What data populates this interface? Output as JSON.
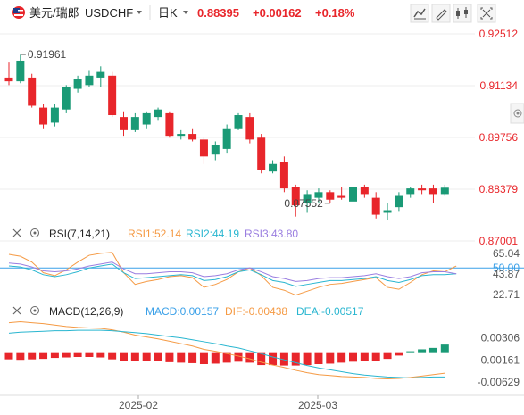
{
  "header": {
    "flag_icon": "us-ch-flag-icon",
    "pair_name": "美元/瑞郎",
    "symbol": "USDCHF",
    "dropdown_icon": "caret-down-icon",
    "period": "日K",
    "period_dropdown_icon": "caret-down-icon",
    "price": "0.88395",
    "change": "+0.00162",
    "change_pct": "+0.18%",
    "tools": [
      {
        "name": "line-chart-icon"
      },
      {
        "name": "draw-tool-icon"
      },
      {
        "name": "candlestick-icon"
      },
      {
        "name": "fullscreen-icon"
      }
    ],
    "right_settings_icon": "settings-icon"
  },
  "colors": {
    "up": "#1a9a76",
    "down": "#e8262b",
    "accent_red": "#e8262b",
    "rsi1": "#f59a44",
    "rsi2": "#29b6d0",
    "rsi3": "#9a7ee0",
    "macd_label": "#3aa0e8",
    "dif": "#f59a44",
    "dea": "#29b6d0",
    "rsi_ref": "#3aa0e8",
    "grid": "#eeeeee",
    "axis_text": "#555555",
    "price_axis_text": "#e8262b"
  },
  "chart_data": [
    {
      "type": "candlestick",
      "title": "",
      "y_ticks": [
        "0.92512",
        "0.91134",
        "0.89756",
        "0.88379",
        "0.87001"
      ],
      "ylim": [
        0.87001,
        0.92512
      ],
      "x_ticks": [
        "2025-02",
        "2025-03"
      ],
      "annotations": [
        {
          "text": "0.91961",
          "kind": "high",
          "index": 1
        },
        {
          "text": "0.87552",
          "kind": "low",
          "index": 28
        }
      ],
      "candles": [
        {
          "o": 0.9135,
          "h": 0.9175,
          "l": 0.9115,
          "c": 0.9125
        },
        {
          "o": 0.9125,
          "h": 0.9196,
          "l": 0.912,
          "c": 0.918
        },
        {
          "o": 0.9135,
          "h": 0.9145,
          "l": 0.9055,
          "c": 0.906
        },
        {
          "o": 0.9055,
          "h": 0.9065,
          "l": 0.9,
          "c": 0.901
        },
        {
          "o": 0.9015,
          "h": 0.9065,
          "l": 0.9005,
          "c": 0.9055
        },
        {
          "o": 0.905,
          "h": 0.9115,
          "l": 0.904,
          "c": 0.911
        },
        {
          "o": 0.9105,
          "h": 0.914,
          "l": 0.9095,
          "c": 0.913
        },
        {
          "o": 0.9115,
          "h": 0.9155,
          "l": 0.911,
          "c": 0.914
        },
        {
          "o": 0.9135,
          "h": 0.9165,
          "l": 0.911,
          "c": 0.915
        },
        {
          "o": 0.914,
          "h": 0.915,
          "l": 0.903,
          "c": 0.9035
        },
        {
          "o": 0.903,
          "h": 0.9045,
          "l": 0.898,
          "c": 0.8995
        },
        {
          "o": 0.8995,
          "h": 0.904,
          "l": 0.899,
          "c": 0.903
        },
        {
          "o": 0.901,
          "h": 0.9045,
          "l": 0.9,
          "c": 0.904
        },
        {
          "o": 0.903,
          "h": 0.9055,
          "l": 0.902,
          "c": 0.905
        },
        {
          "o": 0.904,
          "h": 0.9045,
          "l": 0.8975,
          "c": 0.898
        },
        {
          "o": 0.898,
          "h": 0.8995,
          "l": 0.897,
          "c": 0.8985
        },
        {
          "o": 0.8985,
          "h": 0.9,
          "l": 0.8965,
          "c": 0.897
        },
        {
          "o": 0.897,
          "h": 0.8975,
          "l": 0.8905,
          "c": 0.8925
        },
        {
          "o": 0.893,
          "h": 0.8965,
          "l": 0.8915,
          "c": 0.8955
        },
        {
          "o": 0.8945,
          "h": 0.901,
          "l": 0.8935,
          "c": 0.9
        },
        {
          "o": 0.9,
          "h": 0.904,
          "l": 0.8995,
          "c": 0.9035
        },
        {
          "o": 0.903,
          "h": 0.904,
          "l": 0.896,
          "c": 0.897
        },
        {
          "o": 0.8975,
          "h": 0.8985,
          "l": 0.888,
          "c": 0.889
        },
        {
          "o": 0.8885,
          "h": 0.8915,
          "l": 0.888,
          "c": 0.8905
        },
        {
          "o": 0.891,
          "h": 0.8925,
          "l": 0.883,
          "c": 0.884
        },
        {
          "o": 0.8845,
          "h": 0.885,
          "l": 0.8765,
          "c": 0.8795
        },
        {
          "o": 0.88,
          "h": 0.8835,
          "l": 0.8775,
          "c": 0.8825
        },
        {
          "o": 0.8815,
          "h": 0.884,
          "l": 0.88,
          "c": 0.883
        },
        {
          "o": 0.883,
          "h": 0.8835,
          "l": 0.88,
          "c": 0.881
        },
        {
          "o": 0.882,
          "h": 0.8845,
          "l": 0.881,
          "c": 0.8815
        },
        {
          "o": 0.8805,
          "h": 0.8855,
          "l": 0.88,
          "c": 0.8845
        },
        {
          "o": 0.8845,
          "h": 0.885,
          "l": 0.8815,
          "c": 0.8825
        },
        {
          "o": 0.8815,
          "h": 0.883,
          "l": 0.876,
          "c": 0.877
        },
        {
          "o": 0.8775,
          "h": 0.88,
          "l": 0.8755,
          "c": 0.8782
        },
        {
          "o": 0.879,
          "h": 0.883,
          "l": 0.878,
          "c": 0.882
        },
        {
          "o": 0.8825,
          "h": 0.8845,
          "l": 0.8815,
          "c": 0.884
        },
        {
          "o": 0.884,
          "h": 0.885,
          "l": 0.8825,
          "c": 0.8835
        },
        {
          "o": 0.884,
          "h": 0.885,
          "l": 0.88,
          "c": 0.8825
        },
        {
          "o": 0.8825,
          "h": 0.885,
          "l": 0.882,
          "c": 0.8842
        }
      ]
    },
    {
      "type": "line",
      "title": "RSI(7,14,21)",
      "legend": [
        {
          "label": "RSI1:52.14",
          "color_key": "rsi1"
        },
        {
          "label": "RSI2:44.19",
          "color_key": "rsi2"
        },
        {
          "label": "RSI3:43.80",
          "color_key": "rsi3"
        }
      ],
      "y_ticks": [
        "65.04",
        "50.00",
        "43.87",
        "22.71"
      ],
      "ylim": [
        18,
        75
      ],
      "reference_line": 50,
      "series": [
        {
          "name": "RSI1",
          "color_key": "rsi1",
          "values": [
            64,
            62,
            56,
            45,
            42,
            48,
            56,
            63,
            65,
            66,
            45,
            33,
            36,
            38,
            41,
            42,
            40,
            30,
            33,
            38,
            46,
            50,
            42,
            30,
            27,
            22,
            26,
            30,
            33,
            34,
            36,
            38,
            40,
            30,
            28,
            35,
            43,
            47,
            46,
            52
          ]
        },
        {
          "name": "RSI2",
          "color_key": "rsi2",
          "values": [
            52,
            51,
            48,
            43,
            41,
            43,
            46,
            50,
            52,
            54,
            45,
            39,
            40,
            41,
            42,
            43,
            42,
            37,
            38,
            41,
            46,
            48,
            43,
            37,
            35,
            31,
            33,
            35,
            37,
            37,
            38,
            39,
            41,
            37,
            35,
            38,
            42,
            43,
            43,
            44
          ]
        },
        {
          "name": "RSI3",
          "color_key": "rsi3",
          "values": [
            55,
            54,
            51,
            47,
            46,
            47,
            49,
            52,
            54,
            56,
            49,
            44,
            44,
            45,
            46,
            46,
            45,
            41,
            42,
            44,
            48,
            50,
            46,
            41,
            39,
            36,
            37,
            39,
            40,
            40,
            41,
            42,
            44,
            41,
            39,
            41,
            45,
            46,
            46,
            44
          ]
        }
      ]
    },
    {
      "type": "bar_line",
      "title": "MACD(12,26,9)",
      "legend": [
        {
          "label": "MACD:0.00157",
          "color_key": "macd_label"
        },
        {
          "label": "DIF:-0.00438",
          "color_key": "dif"
        },
        {
          "label": "DEA:-0.00517",
          "color_key": "dea"
        }
      ],
      "y_ticks": [
        "0.00306",
        "-0.00161",
        "-0.00629"
      ],
      "ylim": [
        -0.0085,
        0.0065
      ],
      "histogram": [
        -0.0015,
        -0.0016,
        -0.0015,
        -0.0014,
        -0.0012,
        -0.0011,
        -0.001,
        -0.001,
        -0.0011,
        -0.0015,
        -0.0018,
        -0.0019,
        -0.0019,
        -0.0019,
        -0.0021,
        -0.0022,
        -0.0023,
        -0.0025,
        -0.0024,
        -0.0022,
        -0.002,
        -0.0022,
        -0.0027,
        -0.0027,
        -0.0028,
        -0.0028,
        -0.0027,
        -0.0025,
        -0.0024,
        -0.0022,
        -0.002,
        -0.0019,
        -0.0019,
        -0.0014,
        -0.0007,
        0.0002,
        0.0006,
        0.0009,
        0.0016
      ],
      "dif": [
        0.0062,
        0.0064,
        0.0062,
        0.006,
        0.0057,
        0.0054,
        0.0052,
        0.0051,
        0.005,
        0.0047,
        0.0042,
        0.0036,
        0.0032,
        0.0028,
        0.0023,
        0.0018,
        0.0013,
        0.0006,
        0.0002,
        -0.0003,
        -0.0008,
        -0.0014,
        -0.0021,
        -0.0027,
        -0.0032,
        -0.0038,
        -0.0043,
        -0.0047,
        -0.0049,
        -0.0051,
        -0.0052,
        -0.0053,
        -0.0055,
        -0.0056,
        -0.0055,
        -0.0053,
        -0.005,
        -0.0047,
        -0.0044
      ],
      "dea": [
        0.004,
        0.0042,
        0.0043,
        0.0044,
        0.0045,
        0.0045,
        0.0046,
        0.0046,
        0.0046,
        0.0045,
        0.0043,
        0.0041,
        0.0039,
        0.0036,
        0.0033,
        0.003,
        0.0026,
        0.0022,
        0.0018,
        0.0013,
        0.0009,
        0.0003,
        -0.0003,
        -0.001,
        -0.0016,
        -0.0022,
        -0.0028,
        -0.0033,
        -0.0037,
        -0.0041,
        -0.0045,
        -0.0048,
        -0.005,
        -0.0052,
        -0.0053,
        -0.0054,
        -0.0053,
        -0.0052,
        -0.0052
      ]
    }
  ]
}
